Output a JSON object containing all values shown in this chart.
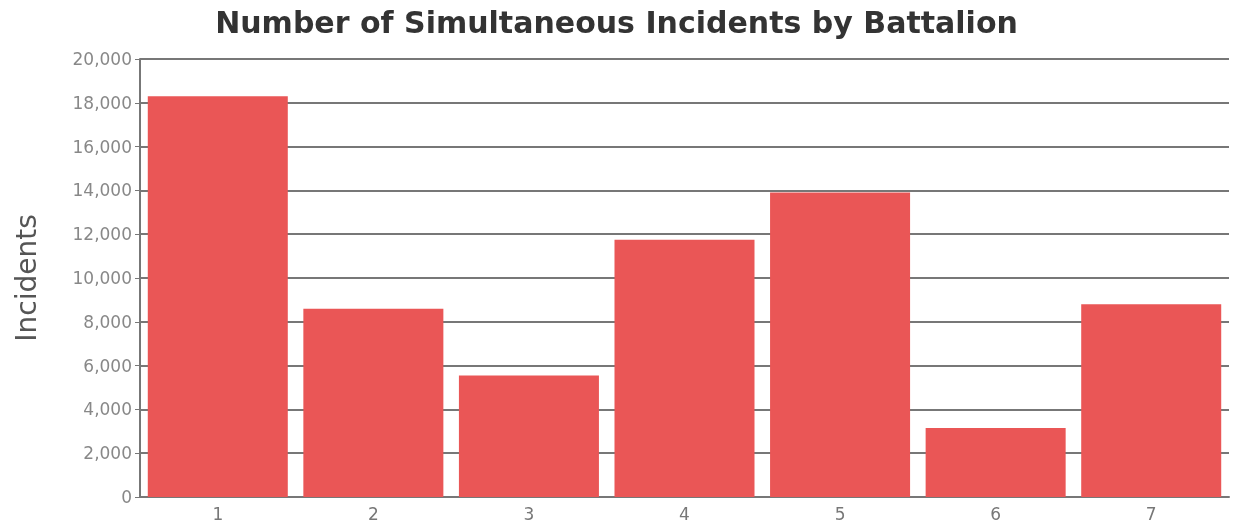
{
  "chart_data": {
    "type": "bar",
    "title": "Number of Simultaneous Incidents by Battalion",
    "ylabel": "Incidents",
    "categories": [
      "1",
      "2",
      "3",
      "4",
      "5",
      "6",
      "7"
    ],
    "values": [
      18300,
      8600,
      5550,
      11750,
      13900,
      3150,
      8800
    ],
    "color": "#ea5656",
    "ylim": [
      0,
      20000
    ],
    "yticks": [
      0,
      {
        "value": 2000,
        "label": "2,000"
      },
      {
        "value": 4000,
        "label": "4,000"
      },
      {
        "value": 6000,
        "label": "6,000"
      },
      {
        "value": 8000,
        "label": "8,000"
      },
      {
        "value": 10000,
        "label": "10,000"
      },
      {
        "value": 12000,
        "label": "12,000"
      },
      {
        "value": 14000,
        "label": "14,000"
      },
      {
        "value": 16000,
        "label": "16,000"
      },
      {
        "value": 18000,
        "label": "18,000"
      },
      {
        "value": 20000,
        "label": "20,000"
      }
    ],
    "grid": "y"
  }
}
